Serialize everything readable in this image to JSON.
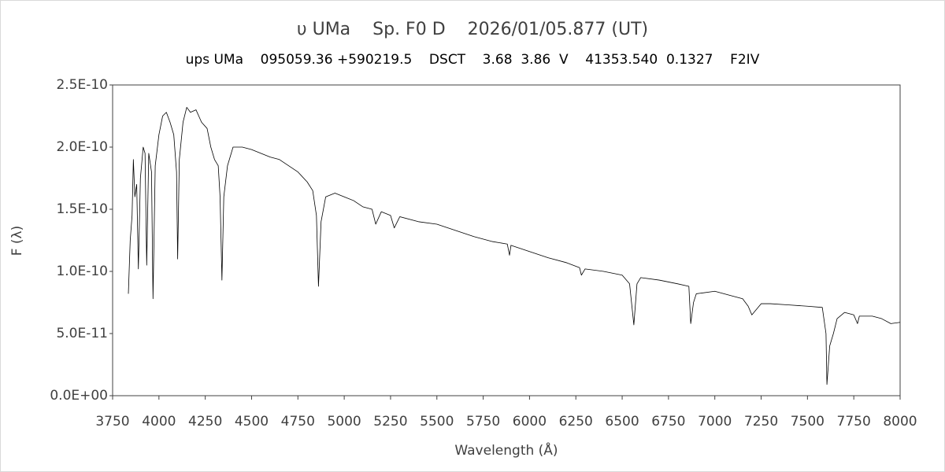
{
  "chart_data": {
    "type": "line",
    "title": "υ UMa    Sp. F0 D    2026/01/05.877 (UT)",
    "subtitle": "ups UMa    095059.36 +590219.5    DSCT    3.68  3.86  V    41353.540  0.1327    F2IV",
    "xlabel": "Wavelength (Å)",
    "ylabel": "F (λ)",
    "xlim": [
      3750,
      8000
    ],
    "xticks": [
      3750,
      4000,
      4250,
      4500,
      4750,
      5000,
      5250,
      5500,
      5750,
      6000,
      6250,
      6500,
      6750,
      7000,
      7250,
      7500,
      7750,
      8000
    ],
    "ylim": [
      0,
      2.5e-10
    ],
    "yticks": [
      {
        "value": 0,
        "label": "0.0E+00"
      },
      {
        "value": 5e-11,
        "label": "5.0E-11"
      },
      {
        "value": 1e-10,
        "label": "1.0E-10"
      },
      {
        "value": 1.5e-10,
        "label": "1.5E-10"
      },
      {
        "value": 2e-10,
        "label": "2.0E-10"
      },
      {
        "value": 2.5e-10,
        "label": "2.5E-10"
      }
    ],
    "grid": false,
    "x": [
      3835,
      3845,
      3855,
      3862,
      3870,
      3880,
      3889,
      3900,
      3915,
      3925,
      3934,
      3945,
      3960,
      3968,
      3980,
      4000,
      4020,
      4040,
      4060,
      4080,
      4095,
      4101,
      4110,
      4130,
      4150,
      4170,
      4200,
      4230,
      4260,
      4280,
      4300,
      4320,
      4330,
      4340,
      4350,
      4370,
      4400,
      4450,
      4500,
      4550,
      4600,
      4650,
      4700,
      4750,
      4800,
      4830,
      4850,
      4861,
      4875,
      4900,
      4950,
      5000,
      5050,
      5100,
      5150,
      5170,
      5200,
      5250,
      5270,
      5300,
      5400,
      5500,
      5600,
      5700,
      5800,
      5880,
      5892,
      5900,
      6000,
      6100,
      6200,
      6270,
      6280,
      6300,
      6400,
      6500,
      6540,
      6563,
      6580,
      6600,
      6700,
      6800,
      6860,
      6870,
      6885,
      6900,
      7000,
      7100,
      7150,
      7180,
      7200,
      7250,
      7300,
      7400,
      7500,
      7580,
      7600,
      7605,
      7620,
      7640,
      7660,
      7700,
      7750,
      7770,
      7780,
      7850,
      7900,
      7950,
      8000
    ],
    "series": [
      {
        "color": "#000000",
        "values": [
          8.2e-11,
          1.25e-10,
          1.45e-10,
          1.9e-10,
          1.6e-10,
          1.7e-10,
          1.02e-10,
          1.75e-10,
          2e-10,
          1.95e-10,
          1.05e-10,
          1.95e-10,
          1.8e-10,
          7.8e-11,
          1.85e-10,
          2.1e-10,
          2.25e-10,
          2.28e-10,
          2.2e-10,
          2.1e-10,
          1.8e-10,
          1.1e-10,
          1.9e-10,
          2.2e-10,
          2.32e-10,
          2.28e-10,
          2.3e-10,
          2.2e-10,
          2.15e-10,
          2e-10,
          1.9e-10,
          1.85e-10,
          1.6e-10,
          9.3e-11,
          1.6e-10,
          1.85e-10,
          2e-10,
          2e-10,
          1.98e-10,
          1.95e-10,
          1.92e-10,
          1.9e-10,
          1.85e-10,
          1.8e-10,
          1.72e-10,
          1.65e-10,
          1.45e-10,
          8.8e-11,
          1.4e-10,
          1.6e-10,
          1.63e-10,
          1.6e-10,
          1.57e-10,
          1.52e-10,
          1.5e-10,
          1.38e-10,
          1.48e-10,
          1.45e-10,
          1.35e-10,
          1.44e-10,
          1.4e-10,
          1.38e-10,
          1.33e-10,
          1.28e-10,
          1.24e-10,
          1.22e-10,
          1.13e-10,
          1.21e-10,
          1.16e-10,
          1.11e-10,
          1.07e-10,
          1.03e-10,
          9.7e-11,
          1.02e-10,
          1e-10,
          9.7e-11,
          9e-11,
          5.7e-11,
          9e-11,
          9.5e-11,
          9.3e-11,
          9e-11,
          8.8e-11,
          5.8e-11,
          7.5e-11,
          8.2e-11,
          8.4e-11,
          8e-11,
          7.8e-11,
          7.2e-11,
          6.5e-11,
          7.4e-11,
          7.4e-11,
          7.3e-11,
          7.2e-11,
          7.1e-11,
          5e-11,
          9e-12,
          4e-11,
          5e-11,
          6.2e-11,
          6.7e-11,
          6.5e-11,
          5.8e-11,
          6.4e-11,
          6.4e-11,
          6.2e-11,
          5.8e-11,
          5.9e-11
        ]
      }
    ]
  }
}
